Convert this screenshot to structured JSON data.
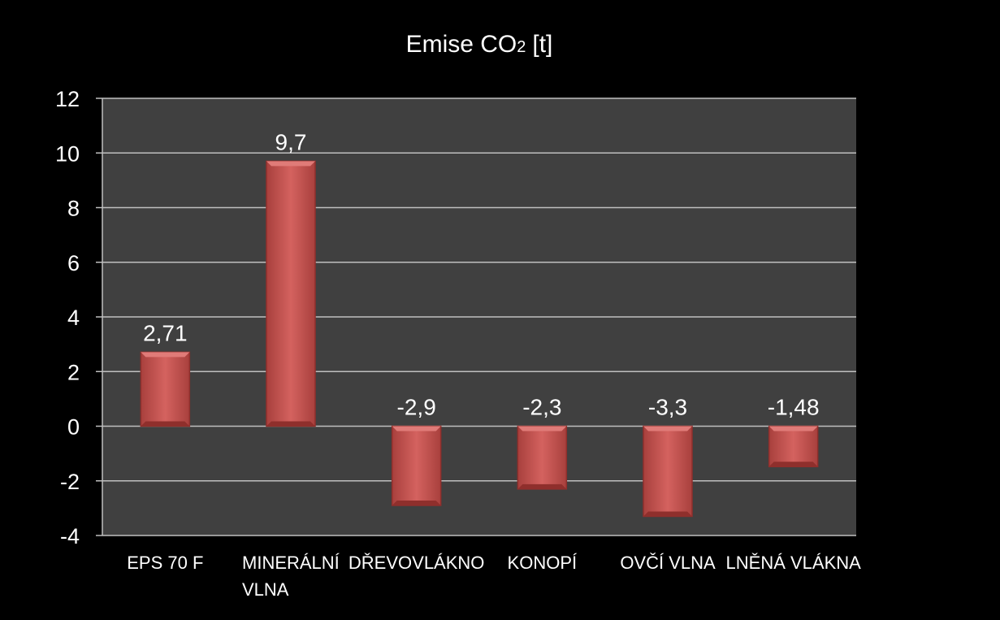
{
  "chart_data": {
    "type": "bar",
    "title": "Emise CO",
    "title_subscript": "2",
    "title_unit": "[t]",
    "categories": [
      [
        "EPS 70 F"
      ],
      [
        "MINERÁLNÍ",
        "VLNA"
      ],
      [
        "DŘEVOVLÁKNO"
      ],
      [
        "KONOPÍ"
      ],
      [
        "OVČÍ VLNA"
      ],
      [
        "LNĚNÁ VLÁKNA"
      ]
    ],
    "values": [
      2.71,
      9.7,
      -2.9,
      -2.3,
      -3.3,
      -1.48
    ],
    "data_labels": [
      "2,71",
      "9,7",
      "-2,9",
      "-2,3",
      "-3,3",
      "-1,48"
    ],
    "ylim": [
      -4,
      12
    ],
    "yticks": [
      -4,
      -2,
      0,
      2,
      4,
      6,
      8,
      10,
      12
    ],
    "grid": true,
    "legend": "none",
    "colors": {
      "background": "#000000",
      "plot_area": "#404040",
      "grid": "#bfbfbf",
      "bar": "#c0504d",
      "bar_light": "#e07b78",
      "bar_dark": "#8f2f2c",
      "text": "#ffffff"
    }
  }
}
